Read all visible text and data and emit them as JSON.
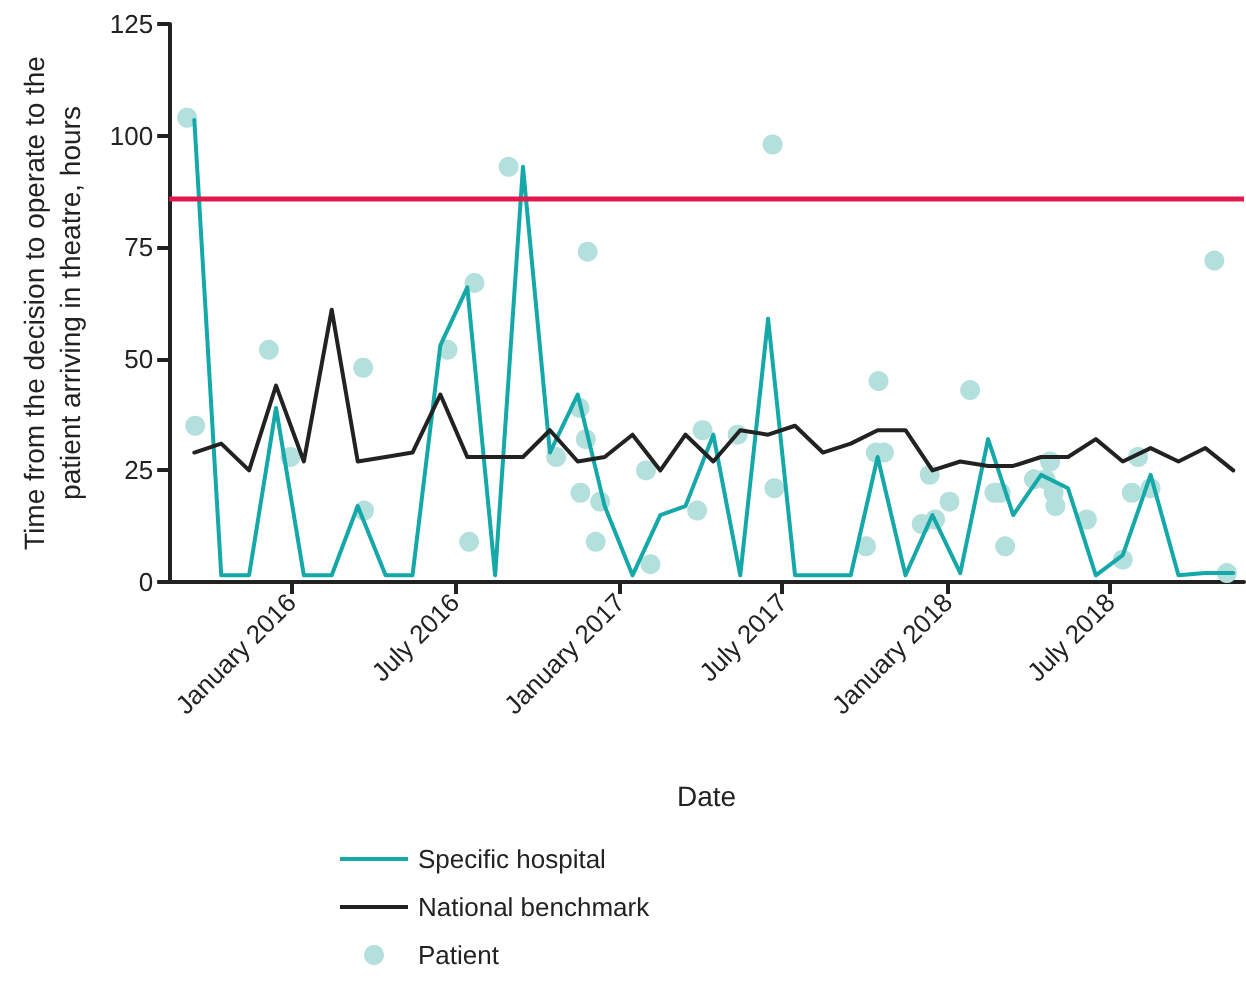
{
  "chart_data": {
    "type": "line",
    "xlabel": "Date",
    "ylabel": "Time from the decision to operate to the\npatient arriving in theatre, hours",
    "x": [
      "2015-09-15",
      "2015-10-15",
      "2015-11-15",
      "2015-12-15",
      "2016-01-15",
      "2016-02-15",
      "2016-03-15",
      "2016-04-15",
      "2016-05-15",
      "2016-06-15",
      "2016-07-15",
      "2016-08-15",
      "2016-09-15",
      "2016-10-15",
      "2016-11-15",
      "2016-12-15",
      "2017-01-15",
      "2017-02-15",
      "2017-03-15",
      "2017-04-15",
      "2017-05-15",
      "2017-06-15",
      "2017-07-15",
      "2017-08-15",
      "2017-09-15",
      "2017-10-15",
      "2017-11-15",
      "2017-12-15",
      "2018-01-15",
      "2018-02-15",
      "2018-03-15",
      "2018-04-15",
      "2018-05-15",
      "2018-06-15",
      "2018-07-15",
      "2018-08-15",
      "2018-09-15",
      "2018-10-15",
      "2018-11-15"
    ],
    "series": [
      {
        "name": "Specific hospital",
        "color": "#14a8a8",
        "values": [
          103.5,
          1.5,
          1.5,
          39,
          1.5,
          1.5,
          17,
          1.5,
          1.5,
          53,
          66,
          1.5,
          93,
          29,
          42,
          17,
          1.5,
          15,
          17,
          33,
          1.5,
          59,
          1.5,
          1.5,
          1.5,
          28,
          1.5,
          15,
          2,
          32,
          15,
          24,
          21,
          1.5,
          6,
          24,
          1.5,
          2,
          2
        ]
      },
      {
        "name": "National benchmark",
        "color": "#222222",
        "values": [
          29,
          31,
          25,
          44,
          27,
          61,
          27,
          28,
          29,
          42,
          28,
          28,
          28,
          34,
          27,
          28,
          33,
          25,
          33,
          27,
          34,
          33,
          35,
          29,
          31,
          34,
          34,
          25,
          27,
          26,
          26,
          28,
          28,
          32,
          27,
          30,
          27,
          30,
          25
        ]
      },
      {
        "name": "Patient",
        "type": "scatter",
        "color": "#b3e0dc",
        "marker": "circle",
        "x": [
          "2015-09-07",
          "2015-09-16",
          "2015-12-07",
          "2015-12-31",
          "2016-03-21",
          "2016-03-22",
          "2016-06-23",
          "2016-07-17",
          "2016-07-23",
          "2016-08-30",
          "2016-10-22",
          "2016-11-17",
          "2016-11-26",
          "2016-11-24",
          "2016-11-18",
          "2016-12-05",
          "2016-12-10",
          "2017-01-30",
          "2017-02-04",
          "2017-03-28",
          "2017-04-03",
          "2017-05-12",
          "2017-06-20",
          "2017-06-22",
          "2017-10-02",
          "2017-10-16",
          "2017-10-13",
          "2017-10-22",
          "2017-12-03",
          "2017-12-18",
          "2017-12-12",
          "2018-01-03",
          "2018-01-26",
          "2018-02-22",
          "2018-03-01",
          "2018-03-06",
          "2018-04-07",
          "2018-04-20",
          "2018-04-25",
          "2018-04-29",
          "2018-05-01",
          "2018-06-05",
          "2018-07-15",
          "2018-07-25",
          "2018-08-01",
          "2018-08-15",
          "2018-10-25",
          "2018-11-08"
        ],
        "values": [
          104,
          35,
          52,
          28,
          48,
          16,
          52,
          9,
          67,
          93,
          28,
          39,
          74,
          32,
          20,
          9,
          18,
          25,
          4,
          16,
          34,
          33,
          98,
          21,
          8,
          45,
          29,
          29,
          13,
          14,
          24,
          18,
          43,
          20,
          20,
          8,
          23,
          23,
          27,
          20,
          17,
          14,
          5,
          20,
          28,
          21,
          72,
          2
        ]
      }
    ],
    "xlim": [
      "2015-08-18",
      "2018-11-27"
    ],
    "xticks": [
      {
        "value": "2016-01-01",
        "label": "January 2016"
      },
      {
        "value": "2016-07-01",
        "label": "July 2016"
      },
      {
        "value": "2017-01-01",
        "label": "January 2017"
      },
      {
        "value": "2017-07-01",
        "label": "July 2017"
      },
      {
        "value": "2018-01-01",
        "label": "January 2018"
      },
      {
        "value": "2018-07-01",
        "label": "July 2018"
      }
    ],
    "ylim": [
      0,
      125
    ],
    "yticks": [
      0,
      25,
      50,
      75,
      100,
      125
    ],
    "ref_lines": [
      {
        "axis": "y",
        "value": 86,
        "color": "#e0194f"
      }
    ],
    "grid": false,
    "legend": "bottom left",
    "line_style": "solid"
  }
}
